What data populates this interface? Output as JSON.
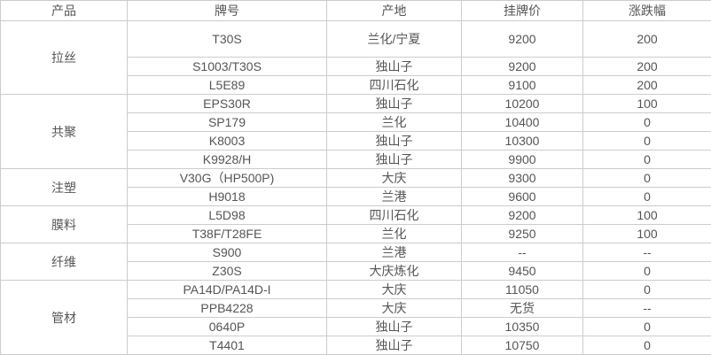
{
  "colors": {
    "text": "#555555",
    "border": "#cccccc",
    "change_up_red": "#e0202e",
    "background": "#ffffff"
  },
  "table": {
    "headers": [
      "产品",
      "牌号",
      "产地",
      "挂牌价",
      "涨跌幅"
    ],
    "groups": [
      {
        "product": "拉丝",
        "rows": [
          {
            "brand": "T30S",
            "origin": "兰化/宁夏",
            "price": "9200",
            "change": "200",
            "change_red": true,
            "tall": true
          },
          {
            "brand": "S1003/T30S",
            "origin": "独山子",
            "price": "9200",
            "change": "200",
            "change_red": true
          },
          {
            "brand": "L5E89",
            "origin": "四川石化",
            "price": "9100",
            "change": "200",
            "change_red": true
          }
        ]
      },
      {
        "product": "共聚",
        "rows": [
          {
            "brand": "EPS30R",
            "origin": "独山子",
            "price": "10200",
            "change": "100",
            "change_red": true
          },
          {
            "brand": "SP179",
            "origin": "兰化",
            "price": "10400",
            "change": "0",
            "change_red": false
          },
          {
            "brand": "K8003",
            "origin": "独山子",
            "price": "10300",
            "change": "0",
            "change_red": false
          },
          {
            "brand": "K9928/H",
            "origin": "独山子",
            "price": "9900",
            "change": "0",
            "change_red": false
          }
        ]
      },
      {
        "product": "注塑",
        "rows": [
          {
            "brand": "V30G（HP500P)",
            "origin": "大庆",
            "price": "9300",
            "change": "0",
            "change_red": false
          },
          {
            "brand": "H9018",
            "origin": "兰港",
            "price": "9600",
            "change": "0",
            "change_red": false
          }
        ]
      },
      {
        "product": "膜料",
        "rows": [
          {
            "brand": "L5D98",
            "origin": "四川石化",
            "price": "9200",
            "change": "100",
            "change_red": true
          },
          {
            "brand": "T38F/T28FE",
            "origin": "兰化",
            "price": "9250",
            "change": "100",
            "change_red": true
          }
        ]
      },
      {
        "product": "纤维",
        "rows": [
          {
            "brand": "S900",
            "origin": "兰港",
            "price": "--",
            "change": "--",
            "change_red": false
          },
          {
            "brand": "Z30S",
            "origin": "大庆炼化",
            "price": "9450",
            "change": "0",
            "change_red": false
          }
        ]
      },
      {
        "product": "管材",
        "rows": [
          {
            "brand": "PA14D/PA14D-I",
            "origin": "大庆",
            "price": "11050",
            "change": "0",
            "change_red": false
          },
          {
            "brand": "PPB4228",
            "origin": "大庆",
            "price": "无货",
            "change": "--",
            "change_red": false
          },
          {
            "brand": "0640P",
            "origin": "独山子",
            "price": "10350",
            "change": "0",
            "change_red": false
          },
          {
            "brand": "T4401",
            "origin": "独山子",
            "price": "10750",
            "change": "0",
            "change_red": false
          }
        ]
      }
    ]
  },
  "chart_data": {
    "type": "table",
    "title": "",
    "columns": [
      "产品",
      "牌号",
      "产地",
      "挂牌价",
      "涨跌幅"
    ],
    "rows": [
      [
        "拉丝",
        "T30S",
        "兰化/宁夏",
        "9200",
        "200"
      ],
      [
        "拉丝",
        "S1003/T30S",
        "独山子",
        "9200",
        "200"
      ],
      [
        "拉丝",
        "L5E89",
        "四川石化",
        "9100",
        "200"
      ],
      [
        "共聚",
        "EPS30R",
        "独山子",
        "10200",
        "100"
      ],
      [
        "共聚",
        "SP179",
        "兰化",
        "10400",
        "0"
      ],
      [
        "共聚",
        "K8003",
        "独山子",
        "10300",
        "0"
      ],
      [
        "共聚",
        "K9928/H",
        "独山子",
        "9900",
        "0"
      ],
      [
        "注塑",
        "V30G（HP500P)",
        "大庆",
        "9300",
        "0"
      ],
      [
        "注塑",
        "H9018",
        "兰港",
        "9600",
        "0"
      ],
      [
        "膜料",
        "L5D98",
        "四川石化",
        "9200",
        "100"
      ],
      [
        "膜料",
        "T38F/T28FE",
        "兰化",
        "9250",
        "100"
      ],
      [
        "纤维",
        "S900",
        "兰港",
        "--",
        "--"
      ],
      [
        "纤维",
        "Z30S",
        "大庆炼化",
        "9450",
        "0"
      ],
      [
        "管材",
        "PA14D/PA14D-I",
        "大庆",
        "11050",
        "0"
      ],
      [
        "管材",
        "PPB4228",
        "大庆",
        "无货",
        "--"
      ],
      [
        "管材",
        "0640P",
        "独山子",
        "10350",
        "0"
      ],
      [
        "管材",
        "T4401",
        "独山子",
        "10750",
        "0"
      ]
    ],
    "layout_hints": {
      "grid": true,
      "product_column_rowspans": [
        3,
        4,
        2,
        2,
        2,
        4
      ],
      "red_change_rows": [
        0,
        1,
        2,
        3,
        9,
        10
      ]
    }
  }
}
